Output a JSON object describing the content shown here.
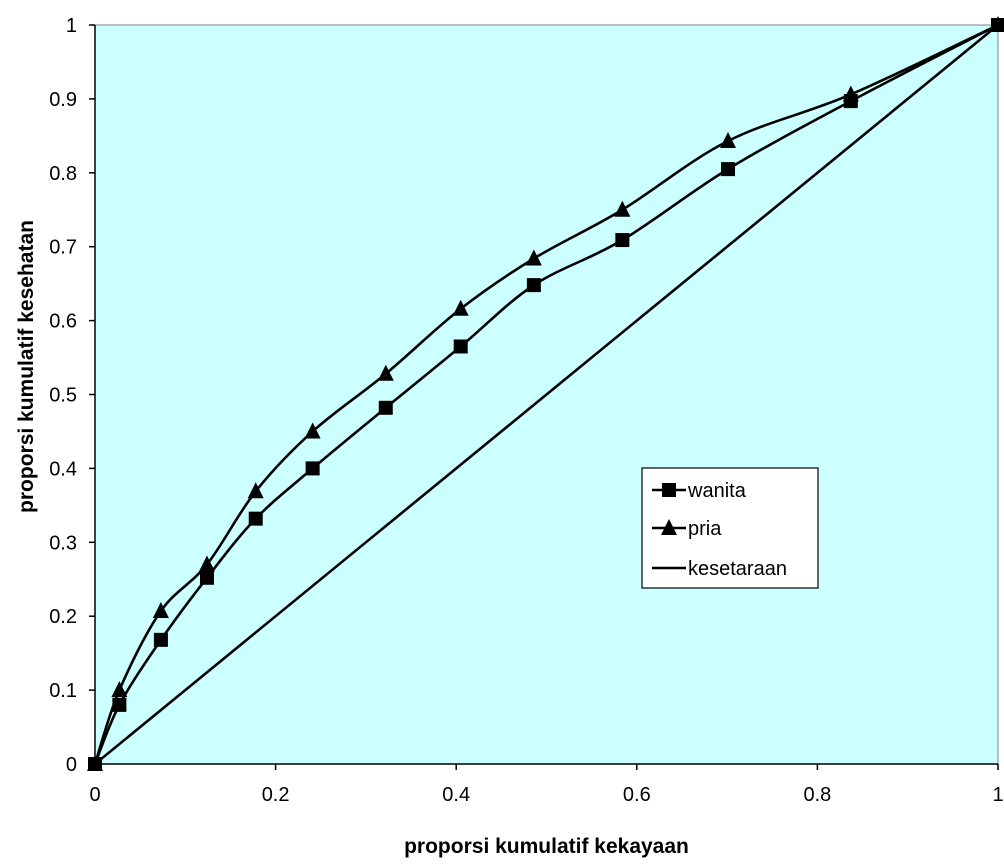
{
  "chart_data": {
    "type": "line",
    "xlabel": "proporsi kumulatif kekayaan",
    "ylabel": "proporsi kumulatif kesehatan",
    "xlim": [
      0,
      1
    ],
    "ylim": [
      0,
      1
    ],
    "x_ticks": [
      0,
      0.2,
      0.4,
      0.6,
      0.8,
      1
    ],
    "y_ticks": [
      0,
      0.1,
      0.2,
      0.3,
      0.4,
      0.5,
      0.6,
      0.7,
      0.8,
      0.9,
      1
    ],
    "x_tick_labels": [
      "0",
      "0.2",
      "0.4",
      "0.6",
      "0.8",
      "1"
    ],
    "y_tick_labels": [
      "0",
      "0.1",
      "0.2",
      "0.3",
      "0.4",
      "0.5",
      "0.6",
      "0.7",
      "0.8",
      "0.9",
      "1"
    ],
    "grid": false,
    "plot_background": "#ccffff",
    "line_color": "#000000",
    "legend_position": "right-center",
    "series": [
      {
        "name": "wanita",
        "marker": "square",
        "smooth": true,
        "x": [
          0,
          0.027,
          0.073,
          0.124,
          0.178,
          0.241,
          0.322,
          0.405,
          0.486,
          0.584,
          0.701,
          0.837,
          1.0
        ],
        "y": [
          0,
          0.08,
          0.168,
          0.252,
          0.332,
          0.4,
          0.482,
          0.565,
          0.648,
          0.709,
          0.805,
          0.897,
          1.0
        ]
      },
      {
        "name": "pria",
        "marker": "triangle",
        "smooth": true,
        "x": [
          0,
          0.027,
          0.073,
          0.124,
          0.178,
          0.241,
          0.322,
          0.405,
          0.486,
          0.584,
          0.701,
          0.837,
          1.0
        ],
        "y": [
          0,
          0.1,
          0.207,
          0.27,
          0.369,
          0.45,
          0.528,
          0.616,
          0.684,
          0.75,
          0.843,
          0.906,
          1.0
        ]
      },
      {
        "name": "kesetaraan",
        "marker": "none",
        "smooth": false,
        "x": [
          0,
          1
        ],
        "y": [
          0,
          1
        ]
      }
    ]
  }
}
